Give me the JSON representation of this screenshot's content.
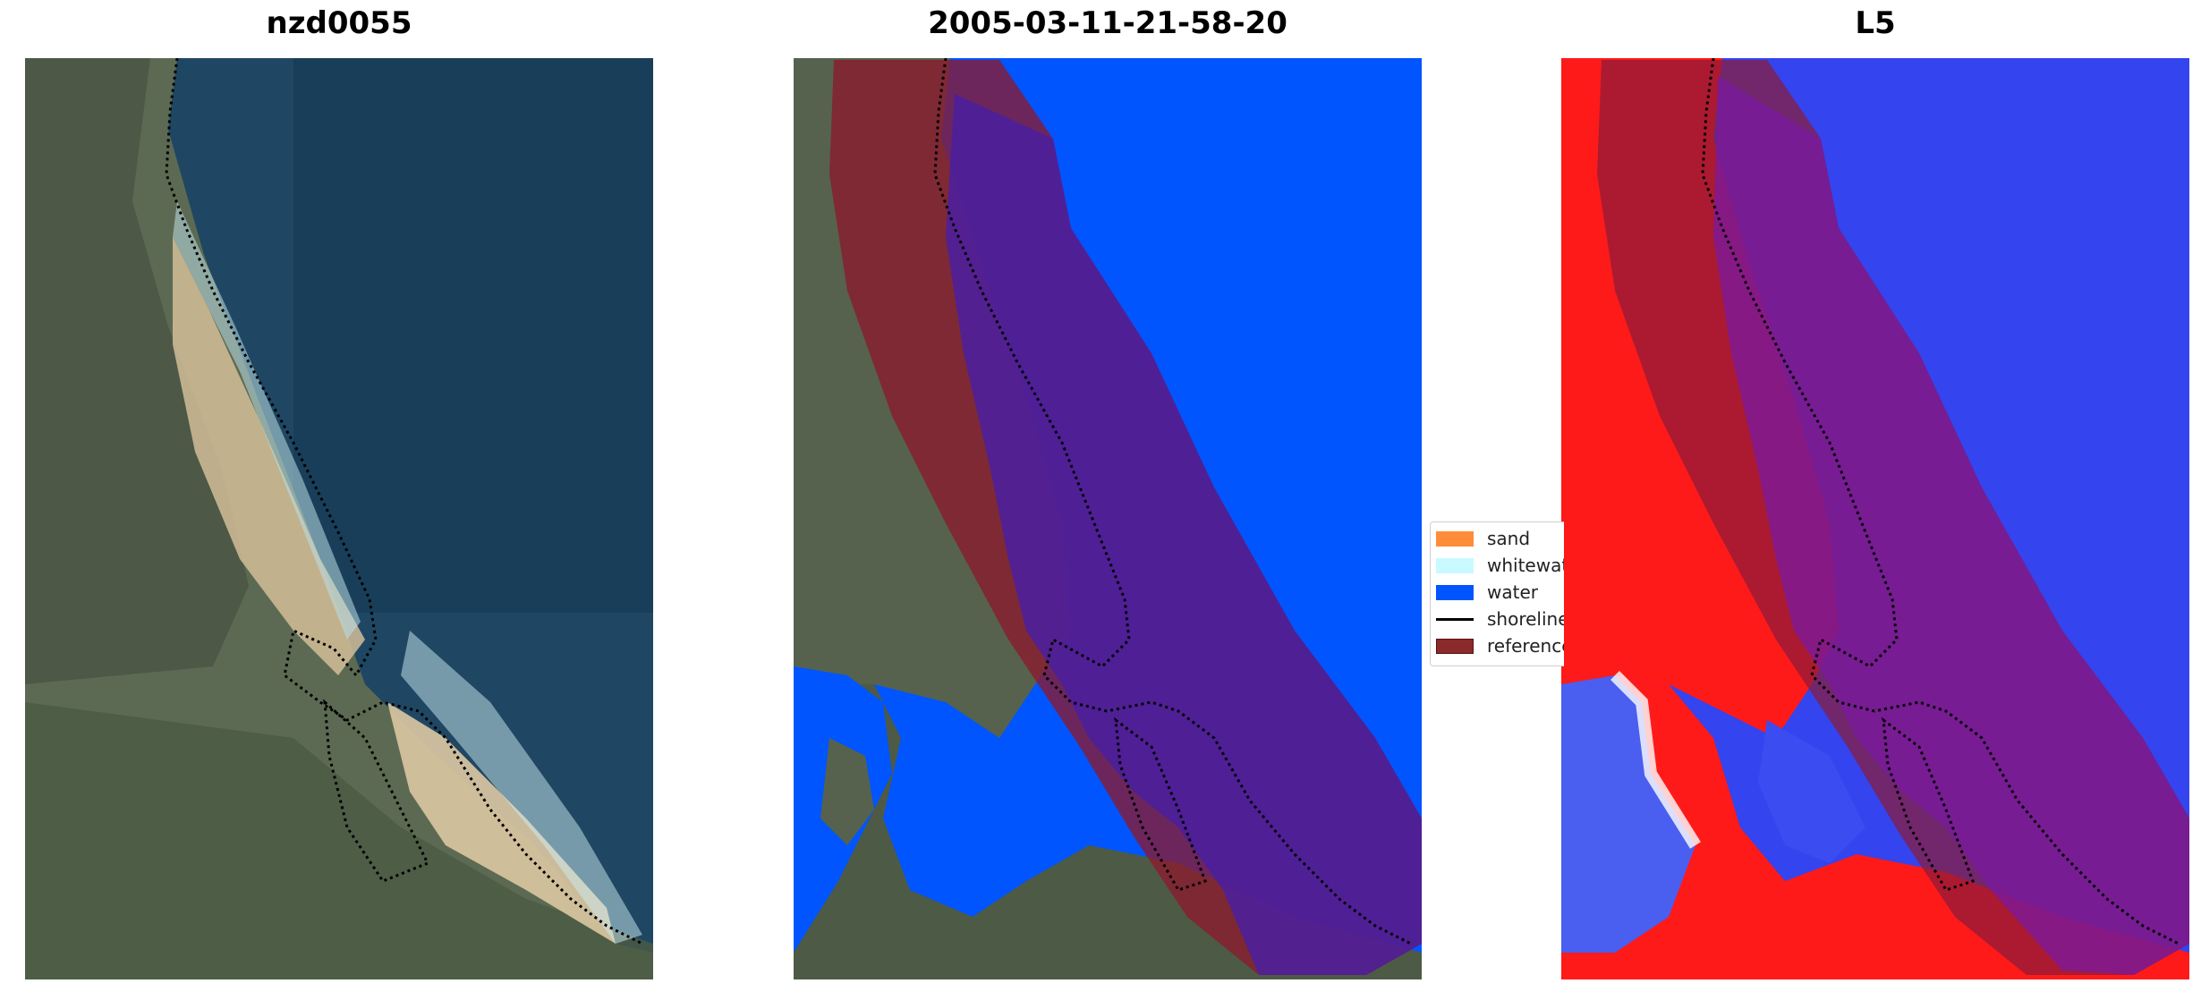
{
  "panels": [
    {
      "title": "nzd0055"
    },
    {
      "title": "2005-03-11-21-58-20"
    },
    {
      "title": "L5"
    }
  ],
  "legend": {
    "items": [
      {
        "label": "sand",
        "color": "#ff8c3b",
        "kind": "patch"
      },
      {
        "label": "whitewater",
        "color": "#c8faff",
        "kind": "patch"
      },
      {
        "label": "water",
        "color": "#0055ff",
        "kind": "patch"
      },
      {
        "label": "shoreline",
        "color": "#000000",
        "kind": "line"
      },
      {
        "label": "reference",
        "color": "#8b2a2a",
        "kind": "patch"
      }
    ]
  },
  "colors": {
    "ocean": "#1d4560",
    "land": "#5a6650",
    "sand": "#d8c4a0",
    "water_class": "#0055ff",
    "reference_buffer": "#8b1a2e",
    "index_positive": "#ff1a1a",
    "index_negative": "#3344ee"
  }
}
